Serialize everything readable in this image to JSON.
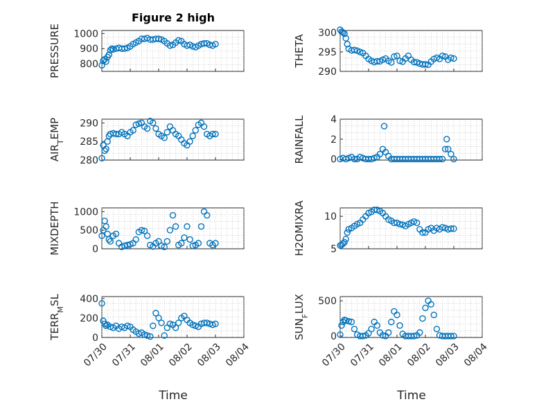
{
  "figure": {
    "title": "Figure 2 high"
  },
  "colors": {
    "marker": "#0072bd",
    "axis": "#262626"
  },
  "x_axis": {
    "ticks": [
      0,
      1,
      2,
      3,
      4,
      5
    ],
    "tick_labels": [
      "07/30",
      "07/31",
      "08/01",
      "08/02",
      "08/03",
      "08/04"
    ],
    "label": "Time"
  },
  "chart_data": [
    {
      "type": "scatter",
      "ylabel": "PRESSURE",
      "ylim": [
        750,
        1020
      ],
      "yticks": [
        800,
        900,
        1000
      ],
      "grid": true,
      "x": [
        0,
        0.05,
        0.1,
        0.15,
        0.2,
        0.25,
        0.3,
        0.35,
        0.4,
        0.5,
        0.6,
        0.7,
        0.8,
        0.9,
        1,
        1.1,
        1.2,
        1.3,
        1.4,
        1.5,
        1.6,
        1.7,
        1.8,
        1.9,
        2,
        2.1,
        2.2,
        2.3,
        2.4,
        2.5,
        2.6,
        2.7,
        2.8,
        2.9,
        3,
        3.1,
        3.2,
        3.3,
        3.4,
        3.5,
        3.6,
        3.7,
        3.8,
        3.9,
        4
      ],
      "y": [
        790,
        820,
        830,
        815,
        845,
        860,
        890,
        900,
        895,
        900,
        905,
        900,
        900,
        905,
        915,
        930,
        940,
        950,
        965,
        965,
        970,
        960,
        960,
        965,
        965,
        960,
        950,
        935,
        920,
        925,
        940,
        955,
        950,
        930,
        920,
        925,
        915,
        910,
        920,
        930,
        935,
        935,
        925,
        920,
        930
      ]
    },
    {
      "type": "scatter",
      "ylabel": "THETA",
      "ylim": [
        290,
        300.5
      ],
      "yticks": [
        290,
        295,
        300
      ],
      "grid": true,
      "x": [
        0,
        0.05,
        0.1,
        0.15,
        0.2,
        0.25,
        0.3,
        0.4,
        0.5,
        0.6,
        0.7,
        0.8,
        0.9,
        1,
        1.1,
        1.2,
        1.3,
        1.4,
        1.5,
        1.6,
        1.7,
        1.8,
        1.9,
        2,
        2.1,
        2.2,
        2.3,
        2.4,
        2.5,
        2.6,
        2.7,
        2.8,
        2.9,
        3,
        3.1,
        3.2,
        3.3,
        3.4,
        3.5,
        3.6,
        3.7,
        3.8,
        3.9,
        4
      ],
      "y": [
        300.7,
        300.2,
        300.0,
        299.7,
        298.5,
        297.0,
        295.8,
        295.4,
        295.5,
        295.3,
        295.0,
        294.7,
        294.0,
        293.2,
        292.7,
        292.4,
        292.6,
        292.6,
        293.0,
        293.3,
        292.7,
        292.3,
        293.8,
        294.0,
        292.7,
        292.5,
        293.3,
        294.0,
        293.0,
        292.4,
        292.3,
        292.0,
        291.8,
        291.8,
        291.7,
        292.5,
        293.2,
        293.5,
        293.2,
        294.0,
        293.8,
        293.0,
        293.5,
        293.3
      ]
    },
    {
      "type": "scatter",
      "ylabel": "AIR_TEMP",
      "ylim": [
        280,
        291
      ],
      "yticks": [
        280,
        285,
        290
      ],
      "grid": true,
      "x": [
        0,
        0.05,
        0.1,
        0.15,
        0.2,
        0.25,
        0.3,
        0.4,
        0.5,
        0.6,
        0.7,
        0.8,
        0.9,
        1,
        1.1,
        1.2,
        1.3,
        1.4,
        1.5,
        1.6,
        1.7,
        1.8,
        1.9,
        2,
        2.1,
        2.2,
        2.3,
        2.4,
        2.5,
        2.6,
        2.7,
        2.8,
        2.9,
        3,
        3.1,
        3.2,
        3.3,
        3.4,
        3.5,
        3.6,
        3.7,
        3.8,
        3.9,
        4
      ],
      "y": [
        280.5,
        284.0,
        282.5,
        283.0,
        285.0,
        286.5,
        287.0,
        287.2,
        287.0,
        287.0,
        287.5,
        287.0,
        286.5,
        287.5,
        288.0,
        289.5,
        289.8,
        290.0,
        289.0,
        288.5,
        290.5,
        290.0,
        288.5,
        287.0,
        286.5,
        286.0,
        287.5,
        289.0,
        288.0,
        287.0,
        286.5,
        285.5,
        284.5,
        284.0,
        285.0,
        286.5,
        288.0,
        289.5,
        290.0,
        289.0,
        287.0,
        286.5,
        287.0,
        287.0
      ]
    },
    {
      "type": "scatter",
      "ylabel": "RAINFALL",
      "ylim": [
        -0.1,
        4
      ],
      "yticks": [
        0,
        2,
        4
      ],
      "grid": true,
      "x": [
        0,
        0.1,
        0.2,
        0.3,
        0.4,
        0.5,
        0.6,
        0.7,
        0.8,
        0.9,
        1,
        1.1,
        1.2,
        1.3,
        1.4,
        1.5,
        1.55,
        1.6,
        1.7,
        1.8,
        1.9,
        2,
        2.1,
        2.2,
        2.3,
        2.4,
        2.5,
        2.6,
        2.7,
        2.8,
        2.9,
        3,
        3.1,
        3.2,
        3.3,
        3.4,
        3.5,
        3.6,
        3.7,
        3.75,
        3.8,
        3.9,
        4
      ],
      "y": [
        0,
        0.1,
        0,
        0.1,
        0.2,
        0,
        0,
        0.2,
        0.1,
        0,
        0,
        0,
        0.1,
        0.2,
        0.5,
        1.0,
        3.3,
        0.7,
        0.3,
        0,
        0,
        0,
        0,
        0,
        0,
        0,
        0,
        0,
        0,
        0,
        0,
        0,
        0,
        0,
        0,
        0,
        0,
        0,
        1.0,
        2.0,
        1.0,
        0.5,
        0
      ]
    },
    {
      "type": "scatter",
      "ylabel": "MIXDEPTH",
      "ylim": [
        0,
        1100
      ],
      "yticks": [
        0,
        500,
        1000
      ],
      "grid": true,
      "x": [
        0,
        0.05,
        0.1,
        0.15,
        0.2,
        0.25,
        0.3,
        0.4,
        0.5,
        0.6,
        0.7,
        0.8,
        0.9,
        1,
        1.1,
        1.2,
        1.3,
        1.4,
        1.5,
        1.6,
        1.7,
        1.8,
        1.9,
        2,
        2.1,
        2.2,
        2.3,
        2.4,
        2.5,
        2.6,
        2.7,
        2.8,
        2.9,
        3,
        3.1,
        3.2,
        3.3,
        3.4,
        3.5,
        3.6,
        3.7,
        3.8,
        3.9,
        4
      ],
      "y": [
        350,
        500,
        750,
        600,
        400,
        250,
        200,
        350,
        400,
        150,
        50,
        80,
        100,
        120,
        150,
        250,
        450,
        500,
        480,
        350,
        100,
        60,
        150,
        200,
        80,
        50,
        200,
        500,
        900,
        600,
        100,
        150,
        300,
        600,
        250,
        80,
        100,
        150,
        600,
        1000,
        900,
        150,
        100,
        150
      ]
    },
    {
      "type": "scatter",
      "ylabel": "H2OMIXRA",
      "ylim": [
        5,
        11.3
      ],
      "yticks": [
        5,
        10
      ],
      "grid": true,
      "x": [
        0,
        0.05,
        0.1,
        0.15,
        0.2,
        0.25,
        0.3,
        0.4,
        0.5,
        0.6,
        0.7,
        0.8,
        0.9,
        1,
        1.1,
        1.2,
        1.3,
        1.4,
        1.5,
        1.6,
        1.7,
        1.8,
        1.9,
        2,
        2.1,
        2.2,
        2.3,
        2.4,
        2.5,
        2.6,
        2.7,
        2.8,
        2.9,
        3,
        3.1,
        3.2,
        3.3,
        3.4,
        3.5,
        3.6,
        3.7,
        3.8,
        3.9,
        4
      ],
      "y": [
        5.5,
        5.6,
        5.8,
        6.0,
        6.5,
        7.5,
        8.0,
        8.2,
        8.5,
        8.8,
        9.0,
        9.5,
        10.0,
        10.5,
        10.7,
        11.0,
        11.0,
        10.8,
        10.5,
        10.0,
        9.5,
        9.3,
        9.0,
        9.0,
        8.8,
        8.7,
        8.5,
        8.8,
        9.0,
        9.2,
        9.0,
        8.0,
        7.5,
        7.5,
        8.0,
        8.2,
        7.8,
        8.2,
        8.0,
        8.3,
        8.2,
        8.0,
        8.1,
        8.1
      ]
    },
    {
      "type": "scatter",
      "ylabel": "TERR_MSL",
      "ylim": [
        0,
        420
      ],
      "yticks": [
        0,
        200,
        400
      ],
      "grid": true,
      "x": [
        0,
        0.05,
        0.1,
        0.15,
        0.2,
        0.3,
        0.4,
        0.5,
        0.6,
        0.7,
        0.8,
        0.9,
        1,
        1.1,
        1.2,
        1.3,
        1.4,
        1.5,
        1.6,
        1.7,
        1.8,
        1.9,
        2,
        2.1,
        2.2,
        2.3,
        2.4,
        2.5,
        2.6,
        2.7,
        2.8,
        2.9,
        3,
        3.1,
        3.2,
        3.3,
        3.4,
        3.5,
        3.6,
        3.7,
        3.8,
        3.9,
        4
      ],
      "y": [
        350,
        170,
        140,
        120,
        130,
        110,
        100,
        120,
        90,
        110,
        100,
        120,
        110,
        80,
        60,
        40,
        50,
        30,
        20,
        10,
        120,
        250,
        200,
        150,
        20,
        100,
        140,
        130,
        100,
        150,
        200,
        220,
        180,
        150,
        130,
        120,
        110,
        140,
        150,
        150,
        140,
        130,
        140
      ]
    },
    {
      "type": "scatter",
      "ylabel": "SUN_FLUX",
      "ylim": [
        -20,
        560
      ],
      "yticks": [
        0,
        500
      ],
      "grid": true,
      "x": [
        0,
        0.05,
        0.1,
        0.15,
        0.2,
        0.3,
        0.4,
        0.5,
        0.6,
        0.7,
        0.8,
        0.9,
        1,
        1.1,
        1.2,
        1.3,
        1.4,
        1.5,
        1.6,
        1.7,
        1.8,
        1.9,
        2,
        2.1,
        2.2,
        2.3,
        2.4,
        2.5,
        2.6,
        2.7,
        2.8,
        2.9,
        3,
        3.1,
        3.2,
        3.3,
        3.4,
        3.5,
        3.6,
        3.7,
        3.8,
        3.9,
        4
      ],
      "y": [
        20,
        150,
        200,
        230,
        220,
        210,
        200,
        100,
        20,
        0,
        0,
        10,
        40,
        100,
        200,
        150,
        50,
        10,
        0,
        50,
        200,
        350,
        300,
        150,
        30,
        0,
        0,
        0,
        0,
        10,
        50,
        250,
        400,
        500,
        450,
        300,
        100,
        10,
        0,
        0,
        0,
        0,
        0
      ]
    }
  ]
}
